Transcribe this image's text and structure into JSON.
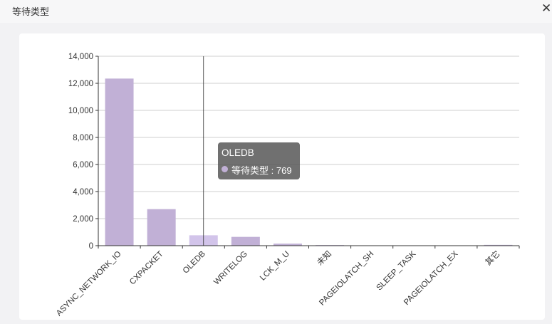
{
  "window": {
    "title": "等待类型"
  },
  "tooltip": {
    "category": "OLEDB",
    "series": "等待类型",
    "separator": " : ",
    "value": "769"
  },
  "colors": {
    "bar": "#c1b0d6",
    "bar_highlight": "#d2c4ea",
    "tooltip_dot": "#c1b0d6"
  },
  "icons": {
    "close": "close-icon"
  },
  "chart_data": {
    "type": "bar",
    "categories": [
      "ASYNC_NETWORK_IO",
      "CXPACKET",
      "OLEDB",
      "WRITELOG",
      "LCK_M_U",
      "未知",
      "PAGEIOLATCH_SH",
      "SLEEP_TASK",
      "PAGEIOLATCH_EX",
      "其它"
    ],
    "series": [
      {
        "name": "等待类型",
        "values": [
          12350,
          2700,
          769,
          650,
          150,
          45,
          25,
          20,
          15,
          60
        ]
      }
    ],
    "y_ticks": [
      "0",
      "2,000",
      "4,000",
      "6,000",
      "8,000",
      "10,000",
      "12,000",
      "14,000"
    ],
    "ylim": [
      0,
      14000
    ],
    "grid": true,
    "highlighted_category": "OLEDB",
    "title": "",
    "xlabel": "",
    "ylabel": ""
  }
}
